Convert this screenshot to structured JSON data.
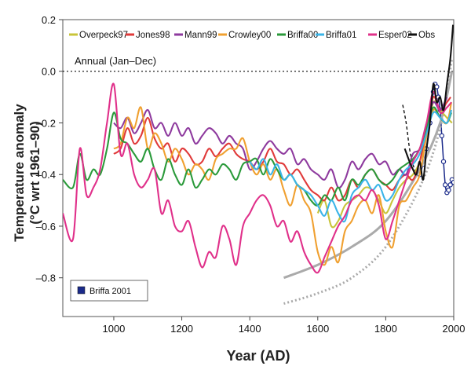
{
  "chart_data": {
    "type": "line",
    "xlabel": "Year (AD)",
    "ylabel_line1": "Temperature anomaly",
    "ylabel_line2": "(°C wrt 1961–90)",
    "xlim": [
      850,
      2000
    ],
    "ylim": [
      -0.95,
      0.2
    ],
    "x_ticks": [
      1000,
      1200,
      1400,
      1600,
      1800,
      2000
    ],
    "y_ticks": [
      0.2,
      0.0,
      -0.2,
      -0.4,
      -0.6,
      -0.8
    ],
    "y_tick_labels": [
      "0.2",
      "0.0",
      "–0.2",
      "–0.4",
      "–0.6",
      "–0.8"
    ],
    "annotation": "Annual (Jan–Dec)",
    "inset_legend": "Briffa 2001",
    "series": [
      {
        "name": "Overpeck97",
        "color": "#c8c43a",
        "x": [
          1600,
          1620,
          1640,
          1660,
          1680,
          1700,
          1720,
          1740,
          1760,
          1780,
          1800,
          1820,
          1840,
          1860,
          1880,
          1900,
          1920,
          1940,
          1960,
          1980,
          1995
        ],
        "y": [
          -0.55,
          -0.5,
          -0.6,
          -0.58,
          -0.52,
          -0.5,
          -0.48,
          -0.45,
          -0.46,
          -0.5,
          -0.55,
          -0.5,
          -0.45,
          -0.42,
          -0.4,
          -0.35,
          -0.25,
          -0.12,
          -0.15,
          -0.18,
          -0.2
        ]
      },
      {
        "name": "Jones98",
        "color": "#e03a3a",
        "x": [
          1000,
          1020,
          1040,
          1060,
          1080,
          1100,
          1120,
          1140,
          1160,
          1180,
          1200,
          1220,
          1240,
          1260,
          1280,
          1300,
          1320,
          1340,
          1360,
          1380,
          1400,
          1420,
          1440,
          1460,
          1480,
          1500,
          1520,
          1540,
          1560,
          1580,
          1600,
          1620,
          1640,
          1660,
          1680,
          1700,
          1720,
          1740,
          1760,
          1780,
          1800,
          1820,
          1840,
          1860,
          1880,
          1900,
          1920,
          1940,
          1960,
          1980,
          1991
        ],
        "y": [
          -0.32,
          -0.3,
          -0.22,
          -0.28,
          -0.25,
          -0.18,
          -0.26,
          -0.3,
          -0.28,
          -0.35,
          -0.3,
          -0.32,
          -0.36,
          -0.35,
          -0.3,
          -0.33,
          -0.3,
          -0.28,
          -0.32,
          -0.34,
          -0.35,
          -0.38,
          -0.35,
          -0.3,
          -0.35,
          -0.36,
          -0.4,
          -0.38,
          -0.42,
          -0.46,
          -0.48,
          -0.5,
          -0.45,
          -0.5,
          -0.48,
          -0.42,
          -0.45,
          -0.4,
          -0.38,
          -0.42,
          -0.44,
          -0.46,
          -0.42,
          -0.4,
          -0.42,
          -0.35,
          -0.22,
          -0.1,
          -0.15,
          -0.12,
          -0.1
        ]
      },
      {
        "name": "Mann99",
        "color": "#8e3a9e",
        "x": [
          1000,
          1020,
          1040,
          1060,
          1080,
          1100,
          1120,
          1140,
          1160,
          1180,
          1200,
          1220,
          1240,
          1260,
          1280,
          1300,
          1320,
          1340,
          1360,
          1380,
          1400,
          1420,
          1440,
          1460,
          1480,
          1500,
          1520,
          1540,
          1560,
          1580,
          1600,
          1620,
          1640,
          1660,
          1680,
          1700,
          1720,
          1740,
          1760,
          1780,
          1800,
          1820,
          1840,
          1860,
          1880,
          1900,
          1920,
          1940,
          1960,
          1980
        ],
        "y": [
          -0.2,
          -0.22,
          -0.18,
          -0.24,
          -0.2,
          -0.15,
          -0.22,
          -0.2,
          -0.25,
          -0.2,
          -0.25,
          -0.22,
          -0.28,
          -0.25,
          -0.22,
          -0.24,
          -0.28,
          -0.25,
          -0.28,
          -0.3,
          -0.38,
          -0.35,
          -0.3,
          -0.27,
          -0.3,
          -0.32,
          -0.3,
          -0.36,
          -0.34,
          -0.38,
          -0.4,
          -0.42,
          -0.38,
          -0.45,
          -0.42,
          -0.35,
          -0.38,
          -0.34,
          -0.32,
          -0.36,
          -0.35,
          -0.4,
          -0.38,
          -0.4,
          -0.32,
          -0.3,
          -0.2,
          -0.12,
          -0.15,
          -0.1
        ]
      },
      {
        "name": "Crowley00",
        "color": "#f0a030",
        "x": [
          1000,
          1020,
          1040,
          1060,
          1080,
          1100,
          1120,
          1140,
          1160,
          1180,
          1200,
          1220,
          1240,
          1260,
          1280,
          1300,
          1320,
          1340,
          1360,
          1380,
          1400,
          1420,
          1440,
          1460,
          1480,
          1500,
          1520,
          1540,
          1560,
          1580,
          1600,
          1620,
          1640,
          1660,
          1680,
          1700,
          1720,
          1740,
          1760,
          1780,
          1800,
          1820,
          1840,
          1860,
          1880,
          1900,
          1920,
          1940,
          1960,
          1980,
          1993
        ],
        "y": [
          -0.3,
          -0.28,
          -0.18,
          -0.22,
          -0.14,
          -0.3,
          -0.24,
          -0.28,
          -0.35,
          -0.3,
          -0.34,
          -0.4,
          -0.36,
          -0.38,
          -0.42,
          -0.34,
          -0.32,
          -0.3,
          -0.3,
          -0.26,
          -0.35,
          -0.4,
          -0.36,
          -0.42,
          -0.38,
          -0.46,
          -0.52,
          -0.44,
          -0.5,
          -0.55,
          -0.7,
          -0.75,
          -0.68,
          -0.74,
          -0.62,
          -0.58,
          -0.52,
          -0.5,
          -0.55,
          -0.48,
          -0.62,
          -0.68,
          -0.52,
          -0.5,
          -0.45,
          -0.4,
          -0.25,
          -0.15,
          -0.18,
          -0.2,
          -0.12
        ]
      },
      {
        "name": "Briffa00",
        "color": "#2a9a3a",
        "x": [
          850,
          880,
          900,
          920,
          940,
          960,
          980,
          1000,
          1020,
          1040,
          1060,
          1080,
          1100,
          1120,
          1140,
          1160,
          1180,
          1200,
          1220,
          1240,
          1260,
          1280,
          1300,
          1320,
          1340,
          1360,
          1380,
          1400,
          1420,
          1440,
          1460,
          1480,
          1500,
          1520,
          1540,
          1560,
          1580,
          1600,
          1620,
          1640,
          1660,
          1680,
          1700,
          1720,
          1740,
          1760,
          1780,
          1800,
          1820,
          1840,
          1860,
          1880,
          1900,
          1920,
          1940,
          1960,
          1980,
          1993
        ],
        "y": [
          -0.42,
          -0.45,
          -0.32,
          -0.42,
          -0.38,
          -0.4,
          -0.3,
          -0.16,
          -0.26,
          -0.28,
          -0.32,
          -0.35,
          -0.3,
          -0.38,
          -0.42,
          -0.34,
          -0.4,
          -0.44,
          -0.38,
          -0.45,
          -0.42,
          -0.38,
          -0.4,
          -0.36,
          -0.38,
          -0.42,
          -0.36,
          -0.35,
          -0.34,
          -0.4,
          -0.34,
          -0.38,
          -0.42,
          -0.4,
          -0.44,
          -0.46,
          -0.5,
          -0.52,
          -0.48,
          -0.5,
          -0.45,
          -0.5,
          -0.42,
          -0.44,
          -0.4,
          -0.38,
          -0.42,
          -0.44,
          -0.42,
          -0.38,
          -0.36,
          -0.34,
          -0.3,
          -0.22,
          -0.14,
          -0.18,
          -0.2,
          -0.16
        ]
      },
      {
        "name": "Briffa01",
        "color": "#3ab4e8",
        "x": [
          1400,
          1420,
          1440,
          1460,
          1480,
          1500,
          1520,
          1540,
          1560,
          1580,
          1600,
          1620,
          1640,
          1660,
          1680,
          1700,
          1720,
          1740,
          1760,
          1780,
          1800,
          1820,
          1840,
          1860,
          1880,
          1900,
          1920,
          1940,
          1960,
          1980,
          1993
        ],
        "y": [
          -0.35,
          -0.38,
          -0.34,
          -0.4,
          -0.36,
          -0.42,
          -0.4,
          -0.44,
          -0.46,
          -0.48,
          -0.52,
          -0.56,
          -0.5,
          -0.55,
          -0.58,
          -0.48,
          -0.45,
          -0.42,
          -0.46,
          -0.44,
          -0.5,
          -0.48,
          -0.42,
          -0.38,
          -0.36,
          -0.32,
          -0.24,
          -0.16,
          -0.18,
          -0.2,
          -0.15
        ]
      },
      {
        "name": "Esper02",
        "color": "#e0308a",
        "x": [
          850,
          880,
          900,
          920,
          940,
          960,
          980,
          1000,
          1020,
          1040,
          1060,
          1080,
          1100,
          1120,
          1140,
          1160,
          1180,
          1200,
          1220,
          1240,
          1260,
          1280,
          1300,
          1320,
          1340,
          1360,
          1380,
          1400,
          1420,
          1440,
          1460,
          1480,
          1500,
          1520,
          1540,
          1560,
          1580,
          1600,
          1620,
          1640,
          1660,
          1680,
          1700,
          1720,
          1740,
          1760,
          1780,
          1800,
          1820,
          1840,
          1860,
          1880,
          1900,
          1920,
          1940,
          1960,
          1980,
          1993
        ],
        "y": [
          -0.55,
          -0.65,
          -0.3,
          -0.48,
          -0.45,
          -0.38,
          -0.2,
          -0.05,
          -0.32,
          -0.28,
          -0.4,
          -0.45,
          -0.42,
          -0.38,
          -0.55,
          -0.5,
          -0.6,
          -0.62,
          -0.58,
          -0.68,
          -0.76,
          -0.7,
          -0.72,
          -0.6,
          -0.65,
          -0.75,
          -0.6,
          -0.55,
          -0.5,
          -0.48,
          -0.52,
          -0.6,
          -0.58,
          -0.66,
          -0.62,
          -0.7,
          -0.75,
          -0.78,
          -0.72,
          -0.66,
          -0.6,
          -0.56,
          -0.5,
          -0.48,
          -0.5,
          -0.46,
          -0.52,
          -0.65,
          -0.58,
          -0.5,
          -0.42,
          -0.35,
          -0.3,
          -0.2,
          -0.08,
          -0.16,
          -0.14,
          -0.12
        ]
      },
      {
        "name": "Obs",
        "color": "#111111",
        "dash": false,
        "x": [
          1856,
          1870,
          1880,
          1890,
          1900,
          1910,
          1920,
          1930,
          1940,
          1950,
          1960,
          1970,
          1980,
          1990,
          1998
        ],
        "y": [
          -0.3,
          -0.35,
          -0.38,
          -0.4,
          -0.35,
          -0.42,
          -0.3,
          -0.2,
          -0.05,
          -0.12,
          -0.1,
          -0.15,
          -0.05,
          0.05,
          0.18
        ]
      }
    ],
    "extra_lines": [
      {
        "role": "obs-dashed",
        "color": "#111111",
        "style": "dashed",
        "x": [
          1850,
          1860,
          1870,
          1880,
          1890
        ],
        "y": [
          -0.13,
          -0.2,
          -0.3,
          -0.36,
          -0.4
        ]
      },
      {
        "role": "briffa2001-circles",
        "color": "#1a2a8a",
        "style": "circles",
        "x": [
          1900,
          1910,
          1920,
          1930,
          1940,
          1945,
          1950,
          1955,
          1960,
          1965,
          1970,
          1975,
          1980,
          1985,
          1990,
          1995,
          2000
        ],
        "y": [
          -0.4,
          -0.36,
          -0.3,
          -0.2,
          -0.08,
          -0.05,
          -0.06,
          -0.1,
          -0.15,
          -0.25,
          -0.35,
          -0.44,
          -0.47,
          -0.46,
          -0.44,
          -0.42,
          -0.43
        ]
      },
      {
        "role": "grey-solid-trend",
        "color": "#aaaaaa",
        "style": "solid",
        "x": [
          1500,
          1600,
          1700,
          1800,
          1900,
          1960,
          1995
        ],
        "y": [
          -0.8,
          -0.75,
          -0.68,
          -0.58,
          -0.38,
          -0.2,
          0.0
        ]
      },
      {
        "role": "grey-dotted-trend",
        "color": "#aaaaaa",
        "style": "dotted",
        "x": [
          1500,
          1600,
          1700,
          1800,
          1900,
          1960,
          1995
        ],
        "y": [
          -0.9,
          -0.86,
          -0.8,
          -0.68,
          -0.45,
          -0.22,
          0.05
        ]
      }
    ]
  }
}
